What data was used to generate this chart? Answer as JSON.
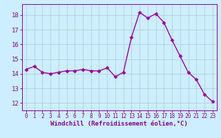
{
  "x": [
    0,
    1,
    2,
    3,
    4,
    5,
    6,
    7,
    8,
    9,
    10,
    11,
    12,
    13,
    14,
    15,
    16,
    17,
    18,
    19,
    20,
    21,
    22,
    23
  ],
  "y": [
    14.3,
    14.5,
    14.1,
    14.0,
    14.1,
    14.2,
    14.2,
    14.3,
    14.2,
    14.2,
    14.4,
    13.8,
    14.1,
    16.5,
    18.2,
    17.8,
    18.1,
    17.5,
    16.3,
    15.2,
    14.1,
    13.6,
    12.6,
    12.1
  ],
  "line_color": "#990099",
  "marker": "D",
  "markersize": 2.5,
  "linewidth": 1.0,
  "bg_color": "#cceeff",
  "grid_color": "#aacccc",
  "xlabel": "Windchill (Refroidissement éolien,°C)",
  "xlim": [
    -0.5,
    23.5
  ],
  "ylim": [
    11.5,
    18.75
  ],
  "yticks": [
    12,
    13,
    14,
    15,
    16,
    17,
    18
  ],
  "xticks": [
    0,
    1,
    2,
    3,
    4,
    5,
    6,
    7,
    8,
    9,
    10,
    11,
    12,
    13,
    14,
    15,
    16,
    17,
    18,
    19,
    20,
    21,
    22,
    23
  ],
  "tick_color": "#880088",
  "label_color": "#880088",
  "xlabel_fontsize": 6.5,
  "ytick_fontsize": 6.5,
  "xtick_fontsize": 5.5
}
